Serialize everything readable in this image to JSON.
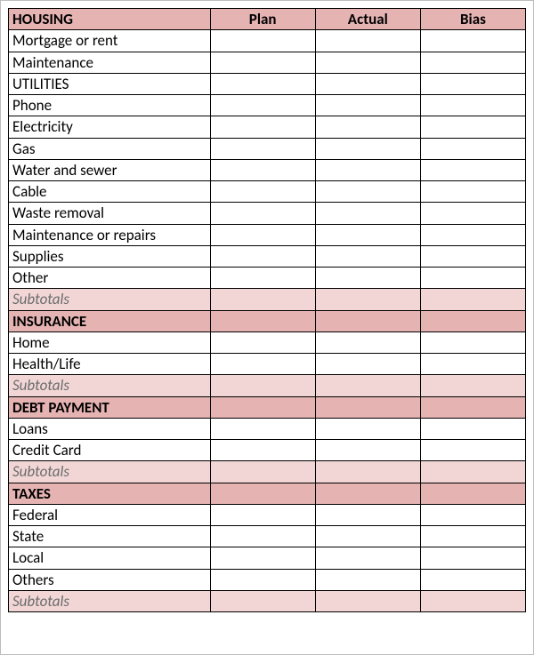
{
  "columns": [
    "Plan",
    "Actual",
    "Bias"
  ],
  "colors": {
    "header_bg": "#e6b3b3",
    "section_bg": "#e6b3b3",
    "subtotal_bg": "#f2d6d6",
    "border": "#000000",
    "page_border": "#bdbdbd",
    "subtotal_text": "#6b6b6b"
  },
  "sections": [
    {
      "name": "HOUSING",
      "as_header": true,
      "rows": [
        {
          "label": "Mortgage or rent",
          "plan": "",
          "actual": "",
          "bias": ""
        },
        {
          "label": "Maintenance",
          "plan": "",
          "actual": "",
          "bias": ""
        },
        {
          "label": "UTILITIES",
          "plan": "",
          "actual": "",
          "bias": ""
        },
        {
          "label": "Phone",
          "plan": "",
          "actual": "",
          "bias": ""
        },
        {
          "label": "Electricity",
          "plan": "",
          "actual": "",
          "bias": ""
        },
        {
          "label": "Gas",
          "plan": "",
          "actual": "",
          "bias": ""
        },
        {
          "label": "Water and sewer",
          "plan": "",
          "actual": "",
          "bias": ""
        },
        {
          "label": "Cable",
          "plan": "",
          "actual": "",
          "bias": ""
        },
        {
          "label": "Waste removal",
          "plan": "",
          "actual": "",
          "bias": ""
        },
        {
          "label": "Maintenance or repairs",
          "plan": "",
          "actual": "",
          "bias": ""
        },
        {
          "label": "Supplies",
          "plan": "",
          "actual": "",
          "bias": ""
        },
        {
          "label": "Other",
          "plan": "",
          "actual": "",
          "bias": ""
        }
      ],
      "subtotal_label": "Subtotals",
      "subtotal": {
        "plan": "",
        "actual": "",
        "bias": ""
      }
    },
    {
      "name": "INSURANCE",
      "as_header": false,
      "rows": [
        {
          "label": "Home",
          "plan": "",
          "actual": "",
          "bias": ""
        },
        {
          "label": "Health/Life",
          "plan": "",
          "actual": "",
          "bias": ""
        }
      ],
      "subtotal_label": "Subtotals",
      "subtotal": {
        "plan": "",
        "actual": "",
        "bias": ""
      }
    },
    {
      "name": "DEBT PAYMENT",
      "as_header": false,
      "rows": [
        {
          "label": "Loans",
          "plan": "",
          "actual": "",
          "bias": ""
        },
        {
          "label": "Credit Card",
          "plan": "",
          "actual": "",
          "bias": ""
        }
      ],
      "subtotal_label": "Subtotals",
      "subtotal": {
        "plan": "",
        "actual": "",
        "bias": ""
      }
    },
    {
      "name": "TAXES",
      "as_header": false,
      "rows": [
        {
          "label": "Federal",
          "plan": "",
          "actual": "",
          "bias": ""
        },
        {
          "label": "State",
          "plan": "",
          "actual": "",
          "bias": ""
        },
        {
          "label": "Local",
          "plan": "",
          "actual": "",
          "bias": ""
        },
        {
          "label": "Others",
          "plan": "",
          "actual": "",
          "bias": ""
        }
      ],
      "subtotal_label": "Subtotals",
      "subtotal": {
        "plan": "",
        "actual": "",
        "bias": ""
      }
    }
  ]
}
